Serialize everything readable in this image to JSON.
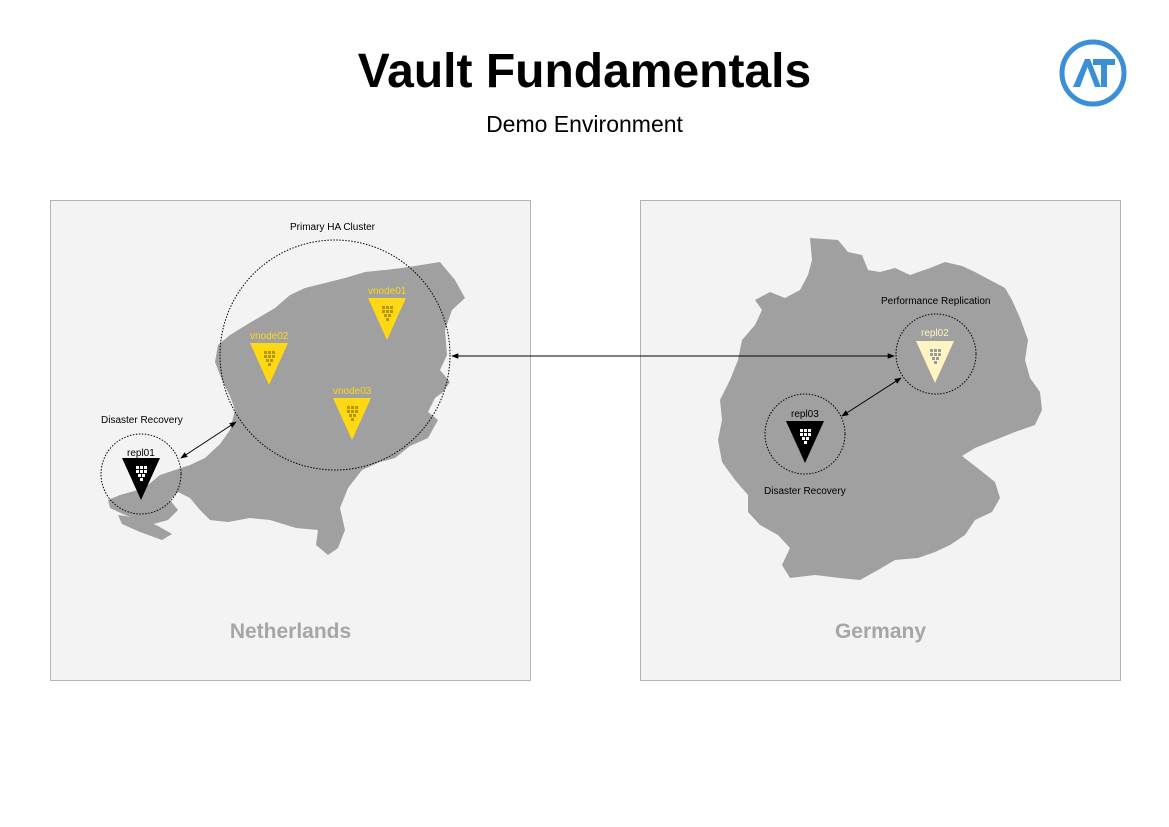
{
  "header": {
    "title": "Vault Fundamentals",
    "subtitle": "Demo Environment"
  },
  "logo": {
    "text": "AT",
    "ring_color": "#3a8fd6"
  },
  "colors": {
    "panel_bg": "#f3f3f3",
    "map_gray": "#a0a0a0",
    "vault_yellow": "#ffd814",
    "vault_pale": "#fff4c2",
    "vault_black": "#000000",
    "node_text_yellow": "#ffd814"
  },
  "netherlands": {
    "country": "Netherlands",
    "cluster_label": "Primary HA Cluster",
    "dr_label": "Disaster Recovery",
    "nodes": [
      {
        "name": "vnode01",
        "style": "yellow"
      },
      {
        "name": "vnode02",
        "style": "yellow"
      },
      {
        "name": "vnode03",
        "style": "yellow"
      },
      {
        "name": "repl01",
        "style": "black"
      }
    ]
  },
  "germany": {
    "country": "Germany",
    "perf_label": "Performance Replication",
    "dr_label": "Disaster Recovery",
    "nodes": [
      {
        "name": "repl02",
        "style": "pale"
      },
      {
        "name": "repl03",
        "style": "black"
      }
    ]
  }
}
